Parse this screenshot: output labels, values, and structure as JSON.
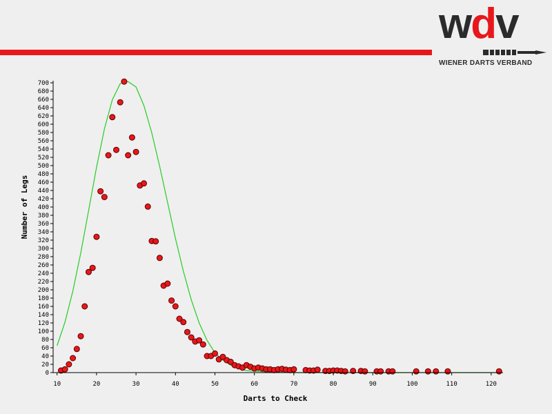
{
  "branding": {
    "logo_w": "w",
    "logo_d": "d",
    "logo_v": "v",
    "logo_subtitle": "WIENER DARTS VERBAND",
    "accent_color": "#e8171b",
    "dark_color": "#2b2b2b"
  },
  "chart_data": {
    "type": "scatter",
    "title": "",
    "xlabel": "Darts to Check",
    "ylabel": "Number of Legs",
    "xlim": [
      9,
      123
    ],
    "ylim": [
      0,
      705
    ],
    "x_ticks": [
      10,
      20,
      30,
      40,
      50,
      60,
      70,
      80,
      90,
      100,
      110,
      120
    ],
    "y_ticks": [
      0,
      20,
      40,
      60,
      80,
      100,
      120,
      140,
      160,
      180,
      200,
      220,
      240,
      260,
      280,
      300,
      320,
      340,
      360,
      380,
      400,
      420,
      440,
      460,
      480,
      500,
      520,
      540,
      560,
      580,
      600,
      620,
      640,
      660,
      680,
      700
    ],
    "grid": false,
    "marker_color": "#e8171b",
    "marker_edge": "#5a0000",
    "curve_color": "#22cc22",
    "series": [
      {
        "kind": "points",
        "x": [
          11,
          12,
          13,
          14,
          15,
          16,
          17,
          18,
          19,
          20,
          21,
          22,
          23,
          24,
          25,
          26,
          27,
          28,
          29,
          30,
          31,
          32,
          33,
          34,
          35,
          36,
          37,
          38,
          39,
          40,
          41,
          42,
          43,
          44,
          45,
          46,
          47,
          48,
          49,
          50,
          51,
          52,
          53,
          54,
          55,
          56,
          57,
          58,
          59,
          60,
          61,
          62,
          63,
          64,
          65,
          66,
          67,
          68,
          69,
          70,
          73,
          74,
          75,
          76,
          78,
          79,
          80,
          81,
          82,
          83,
          85,
          87,
          88,
          91,
          92,
          94,
          95,
          101,
          104,
          106,
          109,
          122
        ],
        "y": [
          5,
          8,
          20,
          35,
          57,
          88,
          160,
          243,
          253,
          328,
          438,
          424,
          525,
          617,
          538,
          653,
          703,
          525,
          568,
          533,
          452,
          457,
          401,
          318,
          317,
          277,
          210,
          215,
          174,
          160,
          130,
          122,
          98,
          85,
          75,
          78,
          68,
          40,
          40,
          46,
          32,
          38,
          30,
          26,
          18,
          15,
          12,
          18,
          14,
          10,
          12,
          10,
          8,
          8,
          6,
          8,
          9,
          7,
          6,
          8,
          6,
          5,
          5,
          7,
          4,
          4,
          5,
          5,
          4,
          3,
          4,
          4,
          3,
          3,
          3,
          3,
          3,
          3,
          3,
          3,
          3,
          3
        ]
      },
      {
        "kind": "fit-curve",
        "x": [
          10,
          12,
          14,
          16,
          18,
          20,
          22,
          24,
          26,
          28,
          30,
          32,
          34,
          36,
          38,
          40,
          42,
          44,
          46,
          48,
          50,
          52,
          54,
          56,
          58,
          60,
          65,
          70,
          80,
          90,
          100,
          110,
          122
        ],
        "y": [
          65,
          122,
          197,
          289,
          392,
          496,
          589,
          659,
          698,
          703,
          690,
          645,
          579,
          498,
          411,
          324,
          245,
          176,
          120,
          78,
          48,
          30,
          18,
          10,
          5,
          3,
          1,
          0,
          0,
          0,
          0,
          0,
          0
        ]
      }
    ]
  }
}
